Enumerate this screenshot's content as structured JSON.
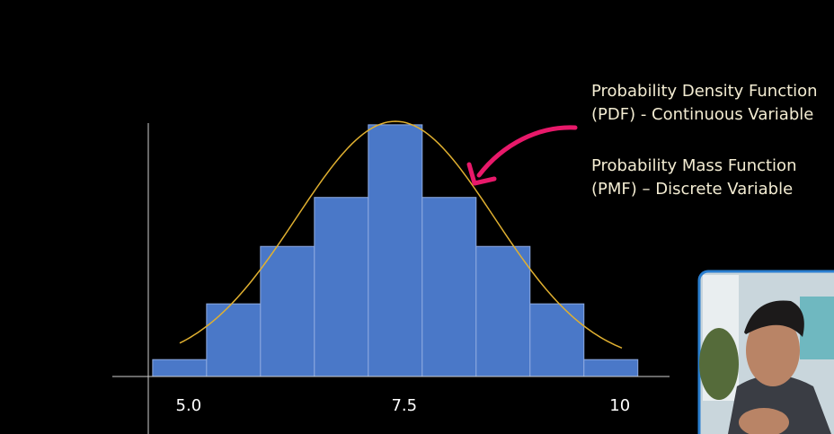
{
  "chart_data": {
    "type": "histogram",
    "bins": [
      4.6875,
      5.3125,
      5.9375,
      6.5625,
      7.1875,
      7.8125,
      8.4375,
      9.0625,
      9.6875,
      10.3125
    ],
    "values": [
      1,
      4.3,
      7.7,
      10.6,
      14.9,
      10.6,
      7.7,
      4.3,
      1
    ],
    "color": "#4a78c8",
    "xlim": [
      4.22,
      10.68
    ],
    "xticks": [
      {
        "value": 5,
        "label": "5.0"
      },
      7.5,
      10
    ],
    "ylim": [
      0,
      15
    ],
    "annotations": [
      "Probability Density Function",
      "(PDF) - Continuous Variable",
      "Probability Mass Function",
      "(PMF) – Discrete Variable"
    ]
  }
}
